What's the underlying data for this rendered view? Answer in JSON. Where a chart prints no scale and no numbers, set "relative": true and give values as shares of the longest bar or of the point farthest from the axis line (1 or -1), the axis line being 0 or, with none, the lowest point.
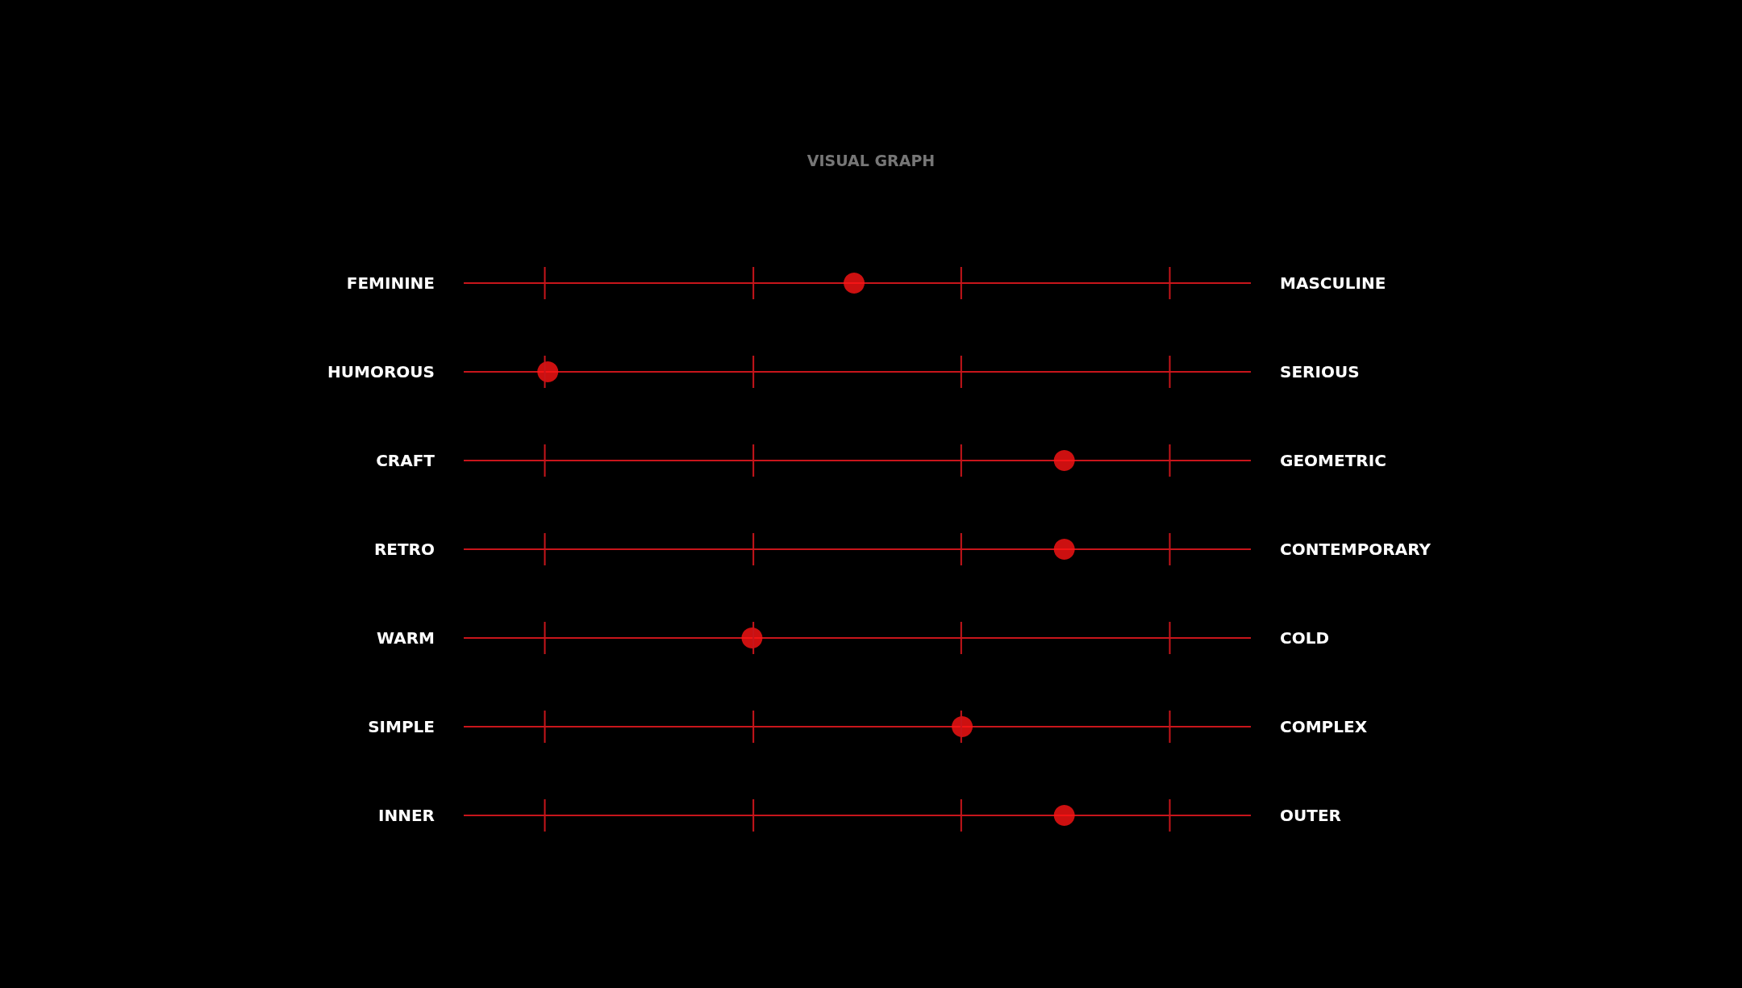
{
  "chart_data": {
    "type": "scatter",
    "title": "VISUAL GRAPH",
    "orientation": "horizontal",
    "relative": true,
    "categories": [
      "FEMININE",
      "HUMOROUS",
      "CRAFT",
      "RETRO",
      "WARM",
      "SIMPLE",
      "INNER"
    ],
    "y2_categories": [
      "MASCULINE",
      "SERIOUS",
      "GEOMETRIC",
      "CONTEMPORARY",
      "COLD",
      "COMPLEX",
      "OUTER"
    ],
    "values": [
      0.65,
      0.14,
      1,
      1,
      0.48,
      0.83,
      1
    ],
    "color": "#ff1414",
    "grid": "y",
    "marker": "circle"
  }
}
